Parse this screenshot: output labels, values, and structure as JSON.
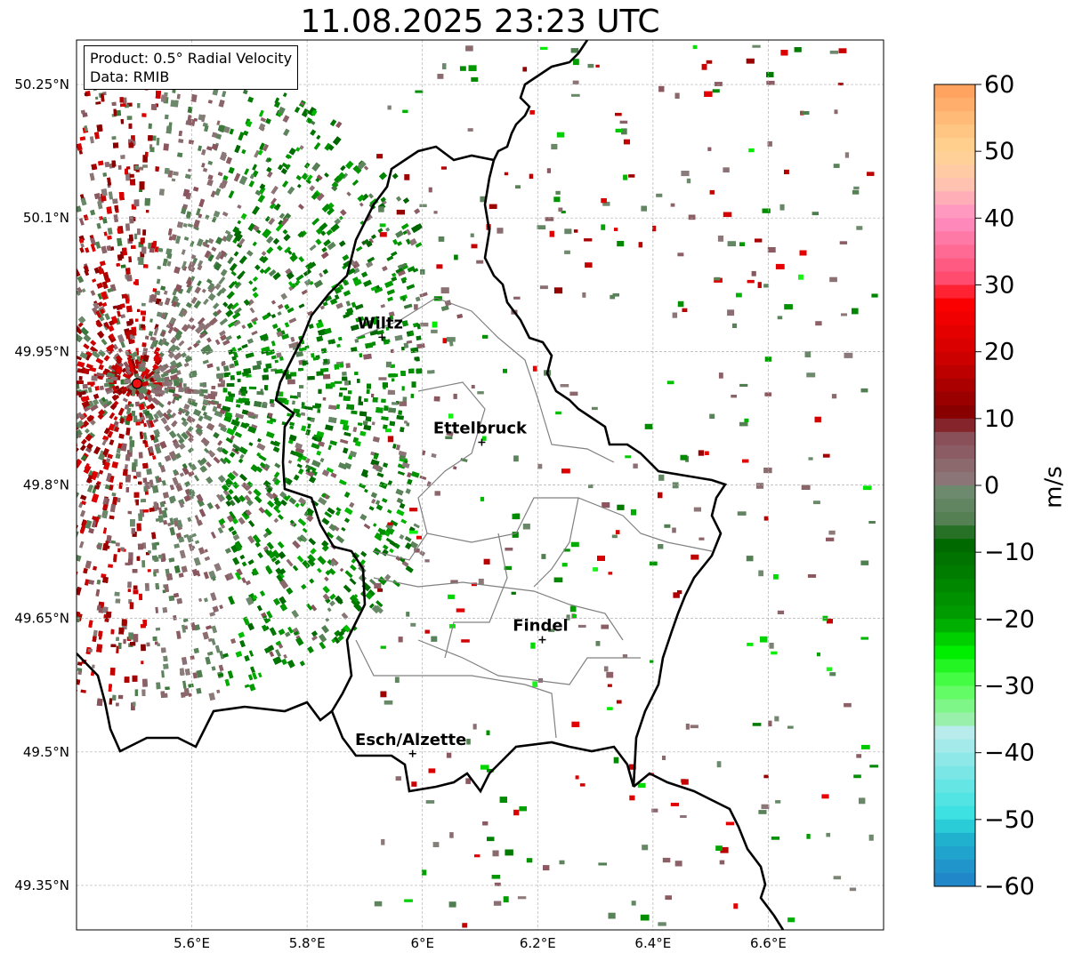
{
  "title": "11.08.2025 23:23 UTC",
  "info": {
    "product": "Product: 0.5° Radial Velocity",
    "data": "Data: RMIB"
  },
  "map": {
    "lon_ticks": [
      {
        "value": 5.6,
        "label": "5.6°E"
      },
      {
        "value": 5.8,
        "label": "5.8°E"
      },
      {
        "value": 6.0,
        "label": "6°E"
      },
      {
        "value": 6.2,
        "label": "6.2°E"
      },
      {
        "value": 6.4,
        "label": "6.4°E"
      },
      {
        "value": 6.6,
        "label": "6.6°E"
      }
    ],
    "lat_ticks": [
      {
        "value": 50.25,
        "label": "50.25°N"
      },
      {
        "value": 50.1,
        "label": "50.1°N"
      },
      {
        "value": 49.95,
        "label": "49.95°N"
      },
      {
        "value": 49.8,
        "label": "49.8°N"
      },
      {
        "value": 49.65,
        "label": "49.65°N"
      },
      {
        "value": 49.5,
        "label": "49.5°N"
      },
      {
        "value": 49.35,
        "label": "49.35°N"
      }
    ],
    "lon_range": [
      5.4,
      6.8
    ],
    "lat_range": [
      49.3,
      50.3
    ],
    "grid": true,
    "radar_site": {
      "lon": 5.505,
      "lat": 49.914
    },
    "cities": [
      {
        "name": "Wiltz",
        "lon": 5.93,
        "lat": 49.966
      },
      {
        "name": "Ettelbruck",
        "lon": 6.103,
        "lat": 49.848
      },
      {
        "name": "Findel",
        "lon": 6.208,
        "lat": 49.626
      },
      {
        "name": "Esch/Alzette",
        "lon": 5.983,
        "lat": 49.498
      }
    ]
  },
  "colorbar": {
    "label": "m/s",
    "range": [
      -60,
      60
    ],
    "tick_values": [
      60,
      50,
      40,
      30,
      20,
      10,
      0,
      -10,
      -20,
      -30,
      -40,
      -50,
      -60
    ],
    "tick_labels": [
      "60",
      "50",
      "40",
      "30",
      "20",
      "10",
      "0",
      "−10",
      "−20",
      "−30",
      "−40",
      "−50",
      "−60"
    ],
    "stops": [
      {
        "v": 60,
        "c": "#ff9f5a"
      },
      {
        "v": 50,
        "c": "#ffd593"
      },
      {
        "v": 45,
        "c": "#ffc2b0"
      },
      {
        "v": 40,
        "c": "#ff8fc3"
      },
      {
        "v": 30,
        "c": "#ff4466"
      },
      {
        "v": 28,
        "c": "#ff0000"
      },
      {
        "v": 20,
        "c": "#d60000"
      },
      {
        "v": 10,
        "c": "#800000"
      },
      {
        "v": 8,
        "c": "#8a4a55"
      },
      {
        "v": 0,
        "c": "#8c7b7b"
      },
      {
        "v": -1,
        "c": "#6e8a6e"
      },
      {
        "v": -6,
        "c": "#4e7e4e"
      },
      {
        "v": -8,
        "c": "#006400"
      },
      {
        "v": -20,
        "c": "#00a000"
      },
      {
        "v": -25,
        "c": "#00ee00"
      },
      {
        "v": -30,
        "c": "#55ff55"
      },
      {
        "v": -35,
        "c": "#99f0aa"
      },
      {
        "v": -37,
        "c": "#b8ecec"
      },
      {
        "v": -50,
        "c": "#33e0e0"
      },
      {
        "v": -52,
        "c": "#20b8d0"
      },
      {
        "v": -60,
        "c": "#2080c8"
      }
    ]
  }
}
